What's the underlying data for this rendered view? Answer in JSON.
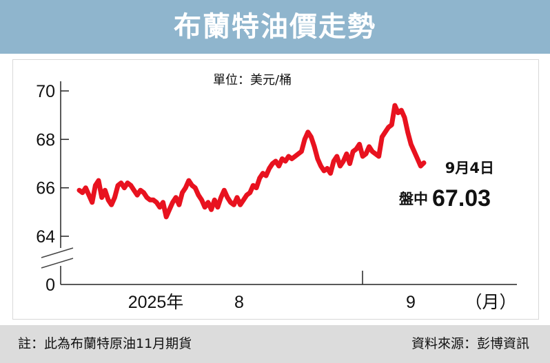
{
  "title": "布蘭特油價走勢",
  "unit": "單位：美元/桶",
  "note": "註：此為布蘭特原油11月期貨",
  "source": "資料來源：彭博資訊",
  "colors": {
    "header": "#8fb5cd",
    "line": "#e8121f",
    "footer": "#dcdcdc"
  },
  "chart_data": {
    "type": "line",
    "title": "布蘭特油價走勢",
    "ylabel": "單位：美元/桶",
    "xlabel": "",
    "axis_break": true,
    "y_ticks": [
      "70",
      "68",
      "66",
      "64",
      "0"
    ],
    "ylim": [
      64,
      70
    ],
    "x_ticks": [
      "2025年",
      "8",
      "9",
      "（月）"
    ],
    "grid": false,
    "annotation": {
      "date": "9月4日",
      "prefix": "盤中",
      "value": "67.03"
    },
    "series": [
      {
        "values": [
          65.9,
          65.8,
          66.0,
          65.7,
          65.4,
          66.1,
          66.3,
          65.6,
          65.9,
          65.5,
          65.3,
          65.6,
          66.1,
          66.2,
          66.0,
          66.2,
          66.1,
          65.9,
          65.7,
          65.9,
          65.8,
          65.6,
          65.5,
          65.5,
          65.4,
          65.2,
          65.4,
          64.8,
          65.1,
          65.4,
          65.6,
          65.3,
          65.8,
          66.0,
          66.3,
          66.1,
          66.0,
          65.7,
          65.5,
          65.2,
          65.4,
          65.1,
          65.5,
          65.2,
          65.6,
          65.9,
          65.6,
          65.4,
          65.3,
          65.6,
          65.3,
          65.5,
          65.7,
          65.8,
          66.1,
          66.0,
          66.4,
          66.6,
          66.5,
          66.8,
          67.0,
          67.1,
          66.9,
          67.2,
          67.1,
          67.3,
          67.2,
          67.3,
          67.4,
          67.5,
          68.0,
          68.3,
          68.1,
          67.7,
          67.2,
          66.9,
          66.7,
          66.8,
          66.6,
          67.1,
          67.3,
          66.9,
          67.1,
          67.4,
          67.0,
          67.5,
          67.6,
          67.8,
          67.3,
          67.4,
          67.7,
          67.5,
          67.4,
          67.3,
          68.1,
          68.3,
          68.5,
          68.6,
          69.4,
          69.1,
          69.2,
          68.9,
          68.3,
          67.8,
          67.5,
          67.2,
          66.9,
          67.03
        ]
      }
    ]
  }
}
